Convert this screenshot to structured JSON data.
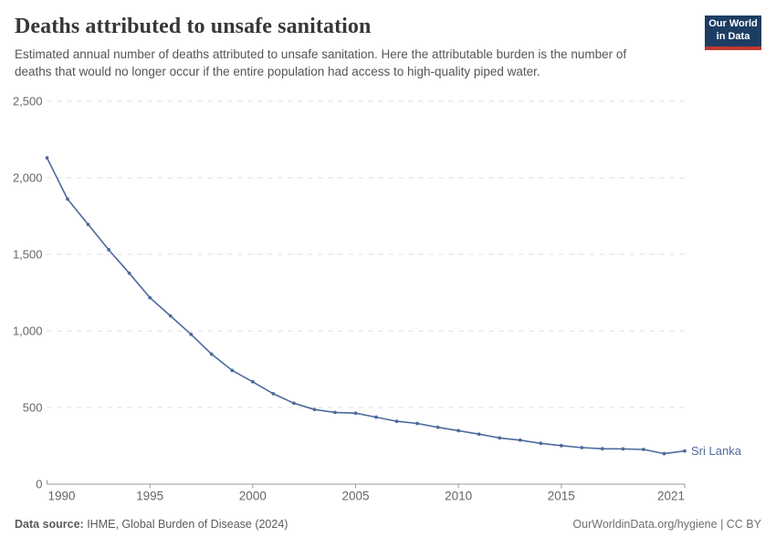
{
  "header": {
    "title": "Deaths attributed to unsafe sanitation",
    "subtitle": "Estimated annual number of deaths attributed to unsafe sanitation. Here the attributable burden is the number of deaths that would no longer occur if the entire population had access to high-quality piped water.",
    "logo": {
      "line1": "Our World",
      "line2": "in Data",
      "bg_color": "#1d3d63",
      "stripe_color": "#c0392b"
    }
  },
  "chart_data": {
    "type": "line",
    "title": "Deaths attributed to unsafe sanitation",
    "xlabel": "",
    "ylabel": "",
    "x": [
      1990,
      1991,
      1992,
      1993,
      1994,
      1995,
      1996,
      1997,
      1998,
      1999,
      2000,
      2001,
      2002,
      2003,
      2004,
      2005,
      2006,
      2007,
      2008,
      2009,
      2010,
      2011,
      2012,
      2013,
      2014,
      2015,
      2016,
      2017,
      2018,
      2019,
      2020,
      2021
    ],
    "series": [
      {
        "name": "Sri Lanka",
        "color": "#4c6a9c",
        "values": [
          2130,
          1861,
          1695,
          1530,
          1377,
          1217,
          1098,
          978,
          848,
          742,
          668,
          590,
          528,
          487,
          468,
          463,
          437,
          410,
          396,
          371,
          349,
          326,
          301,
          287,
          266,
          251,
          238,
          231,
          230,
          226,
          199,
          216
        ]
      }
    ],
    "x_ticks": [
      1990,
      1995,
      2000,
      2005,
      2010,
      2015,
      2021
    ],
    "y_ticks": [
      0,
      500,
      1000,
      1500,
      2000,
      2500
    ],
    "xlim": [
      1990,
      2021
    ],
    "ylim": [
      0,
      2500
    ],
    "grid": "horizontal-dashed",
    "legend_position": "end-of-line-label",
    "end_label": "Sri Lanka",
    "grid_color": "#dcdcdc",
    "axis_color": "#999999",
    "tick_label_color": "#666666"
  },
  "footer": {
    "source_label": "Data source:",
    "source_value": " IHME, Global Burden of Disease (2024)",
    "credit": "OurWorldinData.org/hygiene | CC BY"
  }
}
